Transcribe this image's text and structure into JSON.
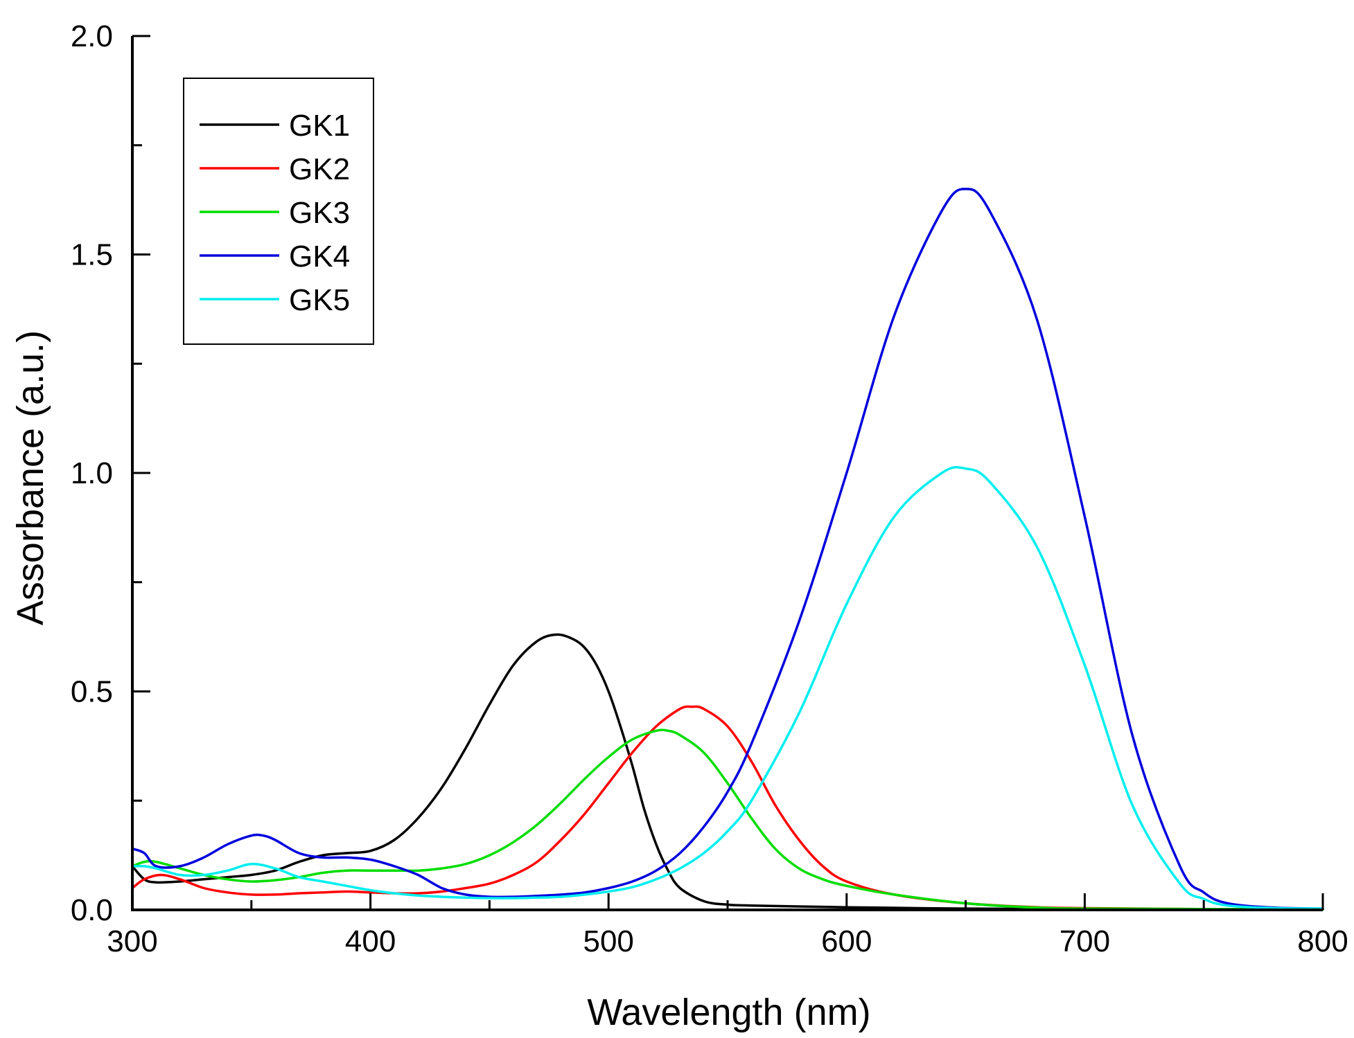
{
  "chart_data": {
    "type": "line",
    "title": "",
    "xlabel": "Wavelength (nm)",
    "ylabel": "Assorbance (a.u.)",
    "xlim": [
      300,
      800
    ],
    "ylim": [
      0.0,
      2.0
    ],
    "x_ticks": [
      "300",
      "400",
      "500",
      "600",
      "700",
      "800"
    ],
    "x_tick_values": [
      300,
      400,
      500,
      600,
      700,
      800
    ],
    "y_ticks": [
      "0.0",
      "0.5",
      "1.0",
      "1.5",
      "2.0"
    ],
    "y_tick_values": [
      0.0,
      0.5,
      1.0,
      1.5,
      2.0
    ],
    "grid": false,
    "legend_position": "top-left",
    "series": [
      {
        "name": "GK1",
        "color": "#000000",
        "x": [
          300,
          305,
          310,
          320,
          330,
          340,
          350,
          360,
          370,
          380,
          390,
          400,
          410,
          420,
          430,
          440,
          450,
          460,
          470,
          478,
          485,
          490,
          495,
          500,
          505,
          510,
          515,
          520,
          525,
          530,
          540,
          550,
          560,
          600,
          650,
          700,
          800
        ],
        "y": [
          0.1,
          0.07,
          0.063,
          0.065,
          0.07,
          0.075,
          0.08,
          0.09,
          0.11,
          0.125,
          0.13,
          0.135,
          0.16,
          0.21,
          0.28,
          0.37,
          0.47,
          0.56,
          0.615,
          0.63,
          0.62,
          0.6,
          0.56,
          0.5,
          0.42,
          0.33,
          0.23,
          0.15,
          0.09,
          0.05,
          0.02,
          0.012,
          0.01,
          0.006,
          0.003,
          0.002,
          0.001
        ]
      },
      {
        "name": "GK2",
        "color": "#ff0000",
        "x": [
          300,
          305,
          312,
          320,
          330,
          340,
          350,
          360,
          370,
          380,
          390,
          400,
          410,
          420,
          430,
          440,
          450,
          460,
          470,
          480,
          490,
          500,
          510,
          520,
          530,
          535,
          540,
          550,
          560,
          570,
          580,
          590,
          600,
          620,
          650,
          680,
          700,
          750,
          800
        ],
        "y": [
          0.05,
          0.07,
          0.08,
          0.07,
          0.05,
          0.04,
          0.035,
          0.035,
          0.038,
          0.04,
          0.042,
          0.04,
          0.038,
          0.038,
          0.042,
          0.05,
          0.06,
          0.08,
          0.11,
          0.16,
          0.22,
          0.29,
          0.36,
          0.42,
          0.46,
          0.465,
          0.46,
          0.42,
          0.34,
          0.24,
          0.16,
          0.1,
          0.065,
          0.035,
          0.015,
          0.006,
          0.004,
          0.002,
          0.001
        ]
      },
      {
        "name": "GK3",
        "color": "#00dd00",
        "x": [
          300,
          305,
          310,
          320,
          330,
          340,
          350,
          360,
          370,
          380,
          390,
          400,
          410,
          420,
          430,
          440,
          450,
          460,
          470,
          480,
          490,
          500,
          510,
          520,
          525,
          530,
          540,
          550,
          560,
          570,
          580,
          590,
          600,
          620,
          650,
          680,
          700,
          750,
          800
        ],
        "y": [
          0.1,
          0.11,
          0.11,
          0.095,
          0.08,
          0.07,
          0.065,
          0.068,
          0.075,
          0.085,
          0.09,
          0.09,
          0.09,
          0.09,
          0.095,
          0.105,
          0.125,
          0.155,
          0.195,
          0.245,
          0.3,
          0.35,
          0.39,
          0.41,
          0.41,
          0.4,
          0.36,
          0.29,
          0.21,
          0.14,
          0.095,
          0.07,
          0.055,
          0.035,
          0.015,
          0.005,
          0.003,
          0.002,
          0.001
        ]
      },
      {
        "name": "GK4",
        "color": "#0000dd",
        "x": [
          300,
          305,
          310,
          320,
          330,
          340,
          350,
          355,
          360,
          370,
          380,
          390,
          400,
          410,
          420,
          430,
          440,
          450,
          460,
          470,
          480,
          490,
          500,
          510,
          520,
          530,
          540,
          550,
          560,
          580,
          600,
          620,
          640,
          650,
          660,
          680,
          700,
          720,
          740,
          750,
          760,
          780,
          800
        ],
        "y": [
          0.14,
          0.13,
          0.1,
          0.1,
          0.12,
          0.15,
          0.17,
          0.17,
          0.16,
          0.13,
          0.12,
          0.12,
          0.115,
          0.1,
          0.08,
          0.05,
          0.035,
          0.03,
          0.03,
          0.032,
          0.035,
          0.04,
          0.05,
          0.065,
          0.09,
          0.13,
          0.19,
          0.27,
          0.38,
          0.66,
          1.0,
          1.36,
          1.6,
          1.65,
          1.6,
          1.35,
          0.9,
          0.4,
          0.1,
          0.04,
          0.015,
          0.005,
          0.003
        ]
      },
      {
        "name": "GK5",
        "color": "#00eeee",
        "x": [
          300,
          305,
          310,
          320,
          330,
          340,
          350,
          360,
          370,
          380,
          390,
          400,
          410,
          420,
          430,
          440,
          450,
          460,
          470,
          480,
          490,
          500,
          510,
          520,
          530,
          540,
          550,
          560,
          580,
          600,
          620,
          640,
          650,
          660,
          680,
          700,
          720,
          740,
          750,
          760,
          780,
          800
        ],
        "y": [
          0.1,
          0.1,
          0.095,
          0.08,
          0.08,
          0.09,
          0.105,
          0.095,
          0.075,
          0.065,
          0.055,
          0.045,
          0.038,
          0.033,
          0.03,
          0.028,
          0.027,
          0.027,
          0.028,
          0.03,
          0.035,
          0.042,
          0.052,
          0.07,
          0.095,
          0.13,
          0.18,
          0.25,
          0.45,
          0.7,
          0.9,
          1.0,
          1.01,
          0.98,
          0.83,
          0.56,
          0.24,
          0.06,
          0.025,
          0.01,
          0.004,
          0.003
        ]
      }
    ]
  }
}
